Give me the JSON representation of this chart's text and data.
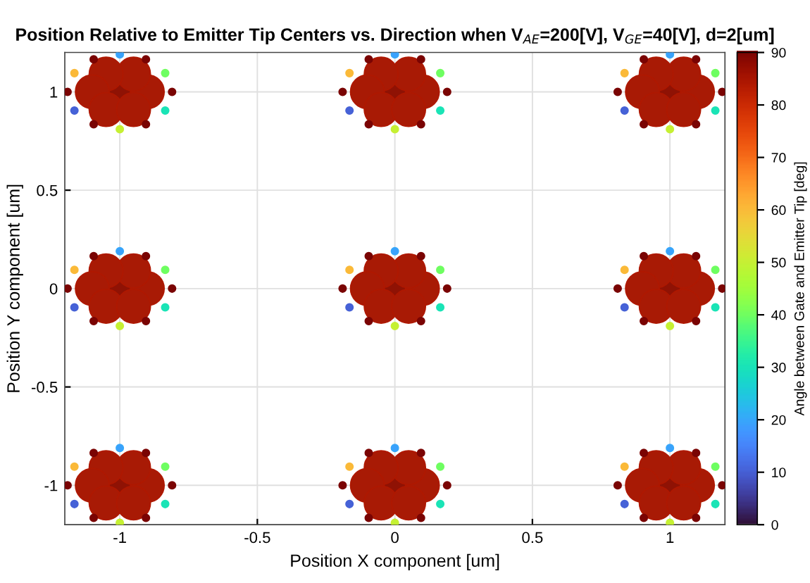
{
  "chart_data": {
    "type": "scatter",
    "title": "Position Relative to Emitter Tip Centers vs. Direction when V$_{AE}$=200[V], V$_{GE}$=40[V], d=2[um]",
    "xlabel": "Position X component [um]",
    "ylabel": "Position Y component [um]",
    "clabel": "Angle between Gate and Emitter Tip [deg]",
    "xlim": [
      -1.2,
      1.2
    ],
    "ylim": [
      -1.2,
      1.2
    ],
    "xticks": [
      -1,
      -0.5,
      0,
      0.5,
      1
    ],
    "yticks": [
      -1,
      -0.5,
      0,
      0.5,
      1
    ],
    "clim": [
      0,
      90
    ],
    "cticks": [
      0,
      10,
      20,
      30,
      40,
      50,
      60,
      70,
      80,
      90
    ],
    "grid": true,
    "marker": "circle",
    "series": [
      {
        "x": [
          -1,
          -0.9,
          -0.95,
          -1.05,
          -1.1,
          -1.05,
          -0.95,
          0,
          0.1,
          0.05,
          -0.05,
          -0.1,
          -0.05,
          0.05,
          1,
          1.1,
          1.05,
          0.95,
          0.9,
          0.95,
          1.05,
          -1,
          -0.9,
          -0.95,
          -1.05,
          -1.1,
          -1.05,
          -0.95,
          0,
          0.1,
          0.05,
          -0.05,
          -0.1,
          -0.05,
          0.05,
          1,
          1.1,
          1.05,
          0.95,
          0.9,
          0.95,
          1.05,
          -1,
          -0.9,
          -0.95,
          -1.05,
          -1.1,
          -1.05,
          -0.95,
          0,
          0.1,
          0.05,
          -0.05,
          -0.1,
          -0.05,
          0.05,
          1,
          1.1,
          1.05,
          0.95,
          0.9,
          0.95,
          1.05
        ],
        "values": [
          1,
          1,
          1.09,
          1.09,
          1,
          0.91,
          0.91,
          1,
          1,
          1.09,
          1.09,
          1,
          0.91,
          0.91,
          1,
          1,
          1.09,
          1.09,
          1,
          0.91,
          0.91,
          0,
          0,
          0.09,
          0.09,
          0,
          -0.09,
          -0.09,
          0,
          0,
          0.09,
          0.09,
          0,
          -0.09,
          -0.09,
          0,
          0,
          0.09,
          0.09,
          0,
          -0.09,
          -0.09,
          -1,
          -1,
          -0.91,
          -0.91,
          -1,
          -1.09,
          -1.09,
          -1,
          -1,
          -0.91,
          -0.91,
          -1,
          -1.09,
          -1.09,
          -1,
          -1,
          -0.91,
          -0.91,
          -1,
          -1.09,
          -1.09
        ],
        "colors": [
          "#8f1204",
          "#a81a05",
          "#a81a05",
          "#a81a05",
          "#a81a05",
          "#a81a05",
          "#a81a05",
          "#8f1204",
          "#a81a05",
          "#a81a05",
          "#a81a05",
          "#a81a05",
          "#a81a05",
          "#a81a05",
          "#8f1204",
          "#a81a05",
          "#a81a05",
          "#a81a05",
          "#a81a05",
          "#a81a05",
          "#a81a05",
          "#8f1204",
          "#a81a05",
          "#a81a05",
          "#a81a05",
          "#a81a05",
          "#a81a05",
          "#a81a05",
          "#8f1204",
          "#a81a05",
          "#a81a05",
          "#a81a05",
          "#a81a05",
          "#a81a05",
          "#a81a05",
          "#8f1204",
          "#a81a05",
          "#a81a05",
          "#a81a05",
          "#a81a05",
          "#a81a05",
          "#a81a05",
          "#8f1204",
          "#a81a05",
          "#a81a05",
          "#a81a05",
          "#a81a05",
          "#a81a05",
          "#a81a05",
          "#8f1204",
          "#a81a05",
          "#a81a05",
          "#a81a05",
          "#a81a05",
          "#a81a05",
          "#a81a05",
          "#8f1204",
          "#a81a05",
          "#a81a05",
          "#a81a05",
          "#a81a05",
          "#a81a05",
          "#a81a05"
        ],
        "cvalues": [
          88,
          84,
          84,
          84,
          84,
          84,
          84,
          88,
          84,
          84,
          84,
          84,
          84,
          84,
          88,
          84,
          84,
          84,
          84,
          84,
          84,
          88,
          84,
          84,
          84,
          84,
          84,
          84,
          88,
          84,
          84,
          84,
          84,
          84,
          84,
          88,
          84,
          84,
          84,
          84,
          84,
          84,
          88,
          84,
          84,
          84,
          84,
          84,
          84,
          88,
          84,
          84,
          84,
          84,
          84,
          84,
          88,
          84,
          84,
          84,
          84,
          84,
          84
        ]
      },
      {
        "x": [
          -0.81,
          -0.835,
          -0.905,
          -1,
          -1.095,
          -1.165,
          -1.19,
          -1.165,
          -1.095,
          -1,
          -0.905,
          -0.835,
          0.19,
          0.165,
          0.095,
          0,
          -0.095,
          -0.165,
          -0.19,
          -0.165,
          -0.095,
          0,
          0.095,
          0.165,
          1.19,
          1.165,
          1.095,
          1,
          0.905,
          0.835,
          0.81,
          0.835,
          0.905,
          1,
          1.095,
          1.165,
          -0.81,
          -0.835,
          -0.905,
          -1,
          -1.095,
          -1.165,
          -1.19,
          -1.165,
          -1.095,
          -1,
          -0.905,
          -0.835,
          0.19,
          0.165,
          0.095,
          0,
          -0.095,
          -0.165,
          -0.19,
          -0.165,
          -0.095,
          0,
          0.095,
          0.165,
          1.19,
          1.165,
          1.095,
          1,
          0.905,
          0.835,
          0.81,
          0.835,
          0.905,
          1,
          1.095,
          1.165,
          -0.81,
          -0.835,
          -0.905,
          -1,
          -1.095,
          -1.165,
          -1.19,
          -1.165,
          -1.095,
          -1,
          -0.905,
          -0.835,
          0.19,
          0.165,
          0.095,
          0,
          -0.095,
          -0.165,
          -0.19,
          -0.165,
          -0.095,
          0,
          0.095,
          0.165,
          1.19,
          1.165,
          1.095,
          1,
          0.905,
          0.835,
          0.81,
          0.835,
          0.905,
          1,
          1.095,
          1.165
        ],
        "values": [
          1,
          1.095,
          1.165,
          1.19,
          1.165,
          1.095,
          1,
          0.905,
          0.835,
          0.81,
          0.835,
          0.905,
          1,
          1.095,
          1.165,
          1.19,
          1.165,
          1.095,
          1,
          0.905,
          0.835,
          0.81,
          0.835,
          0.905,
          1,
          1.095,
          1.165,
          1.19,
          1.165,
          1.095,
          1,
          0.905,
          0.835,
          0.81,
          0.835,
          0.905,
          0,
          0.095,
          0.165,
          0.19,
          0.165,
          0.095,
          0,
          -0.095,
          -0.165,
          -0.19,
          -0.165,
          -0.095,
          0,
          0.095,
          0.165,
          0.19,
          0.165,
          0.095,
          0,
          -0.095,
          -0.165,
          -0.19,
          -0.165,
          -0.095,
          0,
          0.095,
          0.165,
          0.19,
          0.165,
          0.095,
          0,
          -0.095,
          -0.165,
          -0.19,
          -0.165,
          -0.095,
          -1,
          -0.905,
          -0.835,
          -0.81,
          -0.835,
          -0.905,
          -1,
          -1.095,
          -1.165,
          -1.19,
          -1.165,
          -1.095,
          -1,
          -0.905,
          -0.835,
          -0.81,
          -0.835,
          -0.905,
          -1,
          -1.095,
          -1.165,
          -1.19,
          -1.165,
          -1.095,
          -1,
          -0.905,
          -0.835,
          -0.81,
          -0.835,
          -0.905,
          -1,
          -1.095,
          -1.165,
          -1.19,
          -1.165,
          -1.095
        ],
        "colors": [
          "#7a0403",
          "#6dfe62",
          "#7a0403",
          "#3aa1fc",
          "#7a0403",
          "#fbb938",
          "#7a0403",
          "#4662d7",
          "#7a0403",
          "#c4f133",
          "#7a0403",
          "#1ae4b6",
          "#7a0403",
          "#6dfe62",
          "#7a0403",
          "#3aa1fc",
          "#7a0403",
          "#fbb938",
          "#7a0403",
          "#4662d7",
          "#7a0403",
          "#c4f133",
          "#7a0403",
          "#1ae4b6",
          "#7a0403",
          "#6dfe62",
          "#7a0403",
          "#3aa1fc",
          "#7a0403",
          "#fbb938",
          "#7a0403",
          "#4662d7",
          "#7a0403",
          "#c4f133",
          "#7a0403",
          "#1ae4b6",
          "#7a0403",
          "#6dfe62",
          "#7a0403",
          "#3aa1fc",
          "#7a0403",
          "#fbb938",
          "#7a0403",
          "#4662d7",
          "#7a0403",
          "#c4f133",
          "#7a0403",
          "#1ae4b6",
          "#7a0403",
          "#6dfe62",
          "#7a0403",
          "#3aa1fc",
          "#7a0403",
          "#fbb938",
          "#7a0403",
          "#4662d7",
          "#7a0403",
          "#c4f133",
          "#7a0403",
          "#1ae4b6",
          "#7a0403",
          "#6dfe62",
          "#7a0403",
          "#3aa1fc",
          "#7a0403",
          "#fbb938",
          "#7a0403",
          "#4662d7",
          "#7a0403",
          "#c4f133",
          "#7a0403",
          "#1ae4b6",
          "#7a0403",
          "#6dfe62",
          "#7a0403",
          "#3aa1fc",
          "#7a0403",
          "#fbb938",
          "#7a0403",
          "#4662d7",
          "#7a0403",
          "#c4f133",
          "#7a0403",
          "#1ae4b6",
          "#7a0403",
          "#6dfe62",
          "#7a0403",
          "#3aa1fc",
          "#7a0403",
          "#fbb938",
          "#7a0403",
          "#4662d7",
          "#7a0403",
          "#c4f133",
          "#7a0403",
          "#1ae4b6",
          "#7a0403",
          "#6dfe62",
          "#7a0403",
          "#3aa1fc",
          "#7a0403",
          "#fbb938",
          "#7a0403",
          "#4662d7",
          "#7a0403",
          "#c4f133",
          "#7a0403",
          "#1ae4b6"
        ],
        "cvalues": [
          90,
          40,
          90,
          20,
          90,
          60,
          90,
          10,
          90,
          50,
          90,
          30,
          90,
          40,
          90,
          20,
          90,
          60,
          90,
          10,
          90,
          50,
          90,
          30,
          90,
          40,
          90,
          20,
          90,
          60,
          90,
          10,
          90,
          50,
          90,
          30,
          90,
          40,
          90,
          20,
          90,
          60,
          90,
          10,
          90,
          50,
          90,
          30,
          90,
          40,
          90,
          20,
          90,
          60,
          90,
          10,
          90,
          50,
          90,
          30,
          90,
          40,
          90,
          20,
          90,
          60,
          90,
          10,
          90,
          50,
          90,
          30,
          90,
          40,
          90,
          20,
          90,
          60,
          90,
          10,
          90,
          50,
          90,
          30,
          90,
          40,
          90,
          20,
          90,
          60,
          90,
          10,
          90,
          50,
          90,
          30,
          90,
          40,
          90,
          20,
          90,
          60,
          90,
          10,
          90,
          50,
          90,
          30
        ]
      }
    ]
  }
}
